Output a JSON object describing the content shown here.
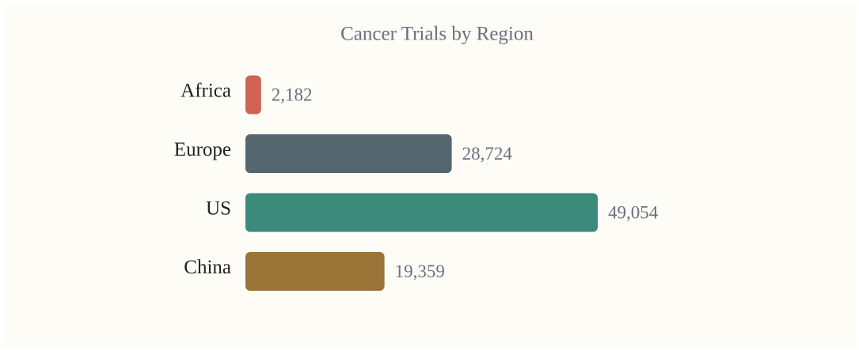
{
  "chart_data": {
    "type": "bar",
    "orientation": "horizontal",
    "title": "Cancer Trials by Region",
    "categories": [
      "Africa",
      "Europe",
      "US",
      "China"
    ],
    "values": [
      2182,
      28724,
      49054,
      19359
    ],
    "value_labels": [
      "2,182",
      "28,724",
      "49,054",
      "19,359"
    ],
    "colors": [
      "#d06355",
      "#56666f",
      "#3c8a79",
      "#9a7336"
    ]
  }
}
